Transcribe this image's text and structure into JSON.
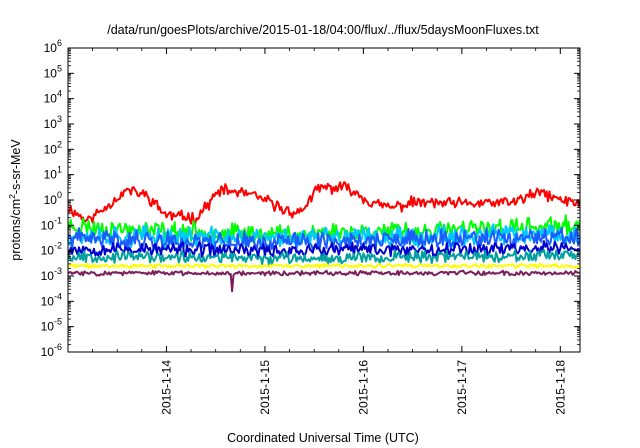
{
  "chart_data": {
    "type": "line",
    "title": "/data/run/goesPlots/archive/2015-01-18/04:00/flux/../flux/5daysMoonFluxes.txt",
    "xlabel": "Coordinated Universal Time (UTC)",
    "ylabel": {
      "prefix": "protons/cm",
      "sup": "2",
      "suffix": "-s-sr-MeV"
    },
    "yscale": "log",
    "ylim_exp": [
      -6,
      6
    ],
    "y_tick_exponents": [
      -6,
      -5,
      -4,
      -3,
      -2,
      -1,
      0,
      1,
      2,
      3,
      4,
      5,
      6
    ],
    "xlim_days": [
      13.0,
      18.2
    ],
    "x_ticks": [
      {
        "label": "2015-1-14",
        "day": 14
      },
      {
        "label": "2015-1-15",
        "day": 15
      },
      {
        "label": "2015-1-16",
        "day": 16
      },
      {
        "label": "2015-1-17",
        "day": 17
      },
      {
        "label": "2015-1-18",
        "day": 18
      }
    ],
    "legend": "none",
    "series": [
      {
        "color": "#ff0000",
        "base": [
          [
            13.0,
            0.5
          ],
          [
            13.2,
            0.15
          ],
          [
            13.4,
            0.6
          ],
          [
            13.6,
            2.5
          ],
          [
            13.8,
            1.5
          ],
          [
            14.0,
            0.25
          ],
          [
            14.3,
            0.2
          ],
          [
            14.55,
            2.5
          ],
          [
            14.8,
            1.8
          ],
          [
            15.0,
            1.0
          ],
          [
            15.2,
            0.4
          ],
          [
            15.35,
            0.3
          ],
          [
            15.55,
            3.0
          ],
          [
            15.85,
            3.0
          ],
          [
            16.1,
            0.7
          ],
          [
            16.3,
            0.5
          ],
          [
            16.5,
            0.8
          ],
          [
            17.0,
            0.7
          ],
          [
            17.5,
            0.8
          ],
          [
            17.8,
            2.0
          ],
          [
            18.0,
            1.0
          ],
          [
            18.2,
            0.7
          ]
        ],
        "noise": 0.18,
        "seed": 11
      },
      {
        "color": "#00ff00",
        "base": [
          [
            13.0,
            0.1
          ],
          [
            13.5,
            0.07
          ],
          [
            14.0,
            0.06
          ],
          [
            14.5,
            0.05
          ],
          [
            15.0,
            0.045
          ],
          [
            15.5,
            0.05
          ],
          [
            16.0,
            0.06
          ],
          [
            16.5,
            0.055
          ],
          [
            17.0,
            0.07
          ],
          [
            17.5,
            0.08
          ],
          [
            18.0,
            0.09
          ],
          [
            18.2,
            0.1
          ]
        ],
        "noise": 0.3,
        "seed": 23
      },
      {
        "color": "#00c8ff",
        "base": [
          [
            13.0,
            0.04
          ],
          [
            14.0,
            0.035
          ],
          [
            15.0,
            0.03
          ],
          [
            16.0,
            0.035
          ],
          [
            17.0,
            0.04
          ],
          [
            18.2,
            0.04
          ]
        ],
        "noise": 0.32,
        "seed": 37
      },
      {
        "color": "#1a5cff",
        "base": [
          [
            13.0,
            0.03
          ],
          [
            14.0,
            0.025
          ],
          [
            15.0,
            0.022
          ],
          [
            16.0,
            0.025
          ],
          [
            17.0,
            0.028
          ],
          [
            18.2,
            0.03
          ]
        ],
        "noise": 0.3,
        "seed": 41
      },
      {
        "color": "#0000cc",
        "base": [
          [
            13.0,
            0.012
          ],
          [
            14.0,
            0.011
          ],
          [
            15.0,
            0.01
          ],
          [
            16.0,
            0.011
          ],
          [
            17.0,
            0.012
          ],
          [
            18.2,
            0.013
          ]
        ],
        "noise": 0.22,
        "seed": 53
      },
      {
        "color": "#00a0a0",
        "base": [
          [
            13.0,
            0.006
          ],
          [
            14.0,
            0.0055
          ],
          [
            15.0,
            0.005
          ],
          [
            16.0,
            0.0055
          ],
          [
            17.0,
            0.006
          ],
          [
            18.2,
            0.006
          ]
        ],
        "noise": 0.18,
        "seed": 67
      },
      {
        "color": "#ffff00",
        "base": [
          [
            13.0,
            0.0025
          ],
          [
            18.2,
            0.0025
          ]
        ],
        "noise": 0.06,
        "seed": 71
      },
      {
        "color": "#7a1f5a",
        "base": [
          [
            13.0,
            0.0013
          ],
          [
            18.2,
            0.0013
          ]
        ],
        "noise": 0.07,
        "seed": 83,
        "dip": {
          "day": 14.67,
          "value": 0.00025
        }
      }
    ]
  }
}
